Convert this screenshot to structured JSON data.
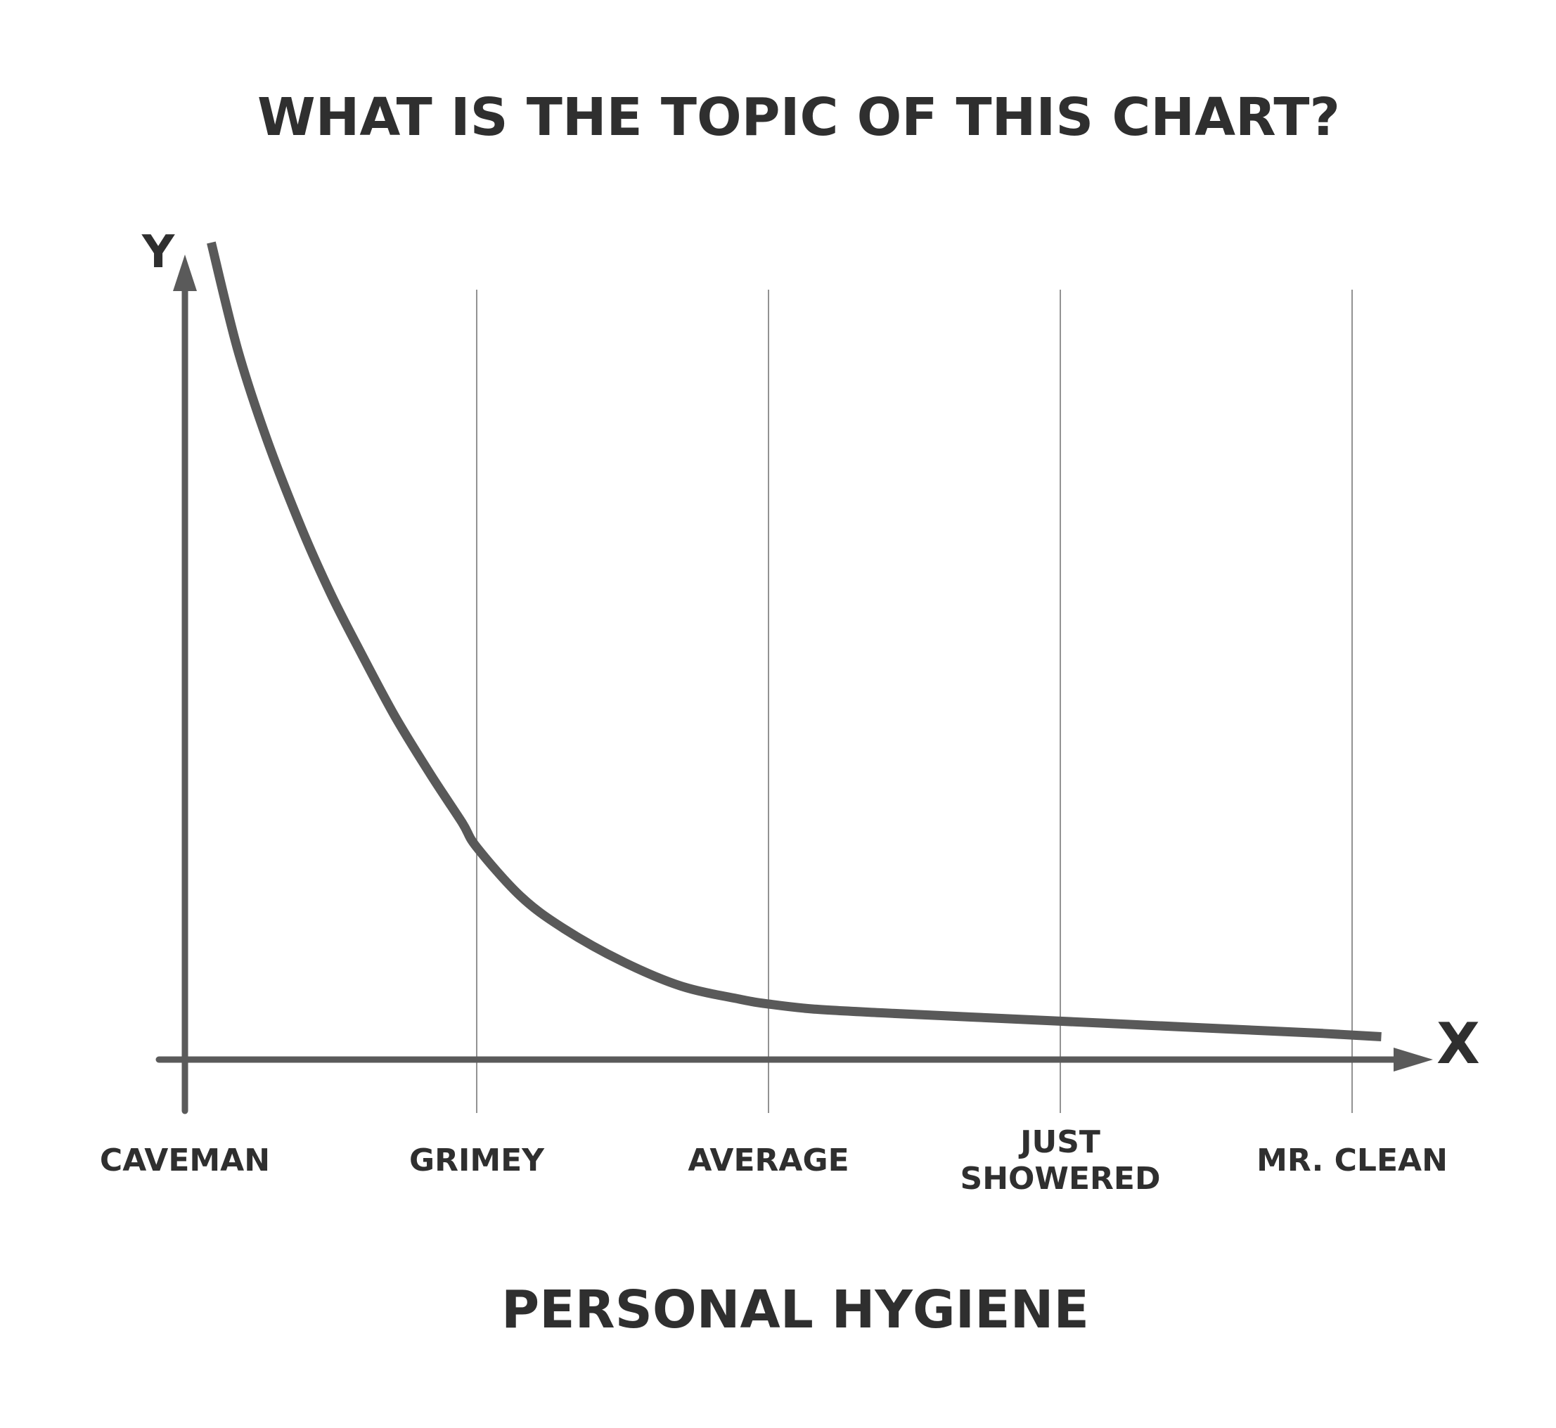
{
  "chart_data": {
    "type": "line",
    "title": "WHAT IS THE TOPIC OF THIS CHART?",
    "xlabel": "PERSONAL HYGIENE",
    "ylabel": "Y",
    "x_axis_letter": "X",
    "categories": [
      "CAVEMAN",
      "GRIMEY",
      "AVERAGE",
      "JUST SHOWERED",
      "MR. CLEAN"
    ],
    "category_lines": [
      [
        "CAVEMAN"
      ],
      [
        "GRIMEY"
      ],
      [
        "AVERAGE"
      ],
      [
        "JUST",
        "SHOWERED"
      ],
      [
        "MR. CLEAN"
      ]
    ],
    "xlim": [
      0,
      4.2
    ],
    "ylim": [
      0,
      1
    ],
    "grid": "vertical",
    "legend": "none",
    "series": [
      {
        "x": [
          0.09,
          0.18,
          0.28,
          0.4,
          0.5,
          0.6,
          0.72,
          0.84,
          0.95,
          1.0,
          1.15,
          1.3,
          1.5,
          1.7,
          1.9,
          2.0,
          2.15,
          2.4,
          2.7,
          3.0,
          3.3,
          3.6,
          3.9,
          4.1
        ],
        "y": [
          1.0,
          0.87,
          0.76,
          0.65,
          0.57,
          0.5,
          0.42,
          0.35,
          0.29,
          0.26,
          0.2,
          0.16,
          0.12,
          0.09,
          0.074,
          0.068,
          0.062,
          0.057,
          0.052,
          0.047,
          0.042,
          0.037,
          0.032,
          0.028
        ]
      }
    ],
    "colors": {
      "line": "#595959",
      "axis": "#5a5a5a",
      "grid": "#6e6e6e",
      "text": "#2f2f2f"
    }
  }
}
